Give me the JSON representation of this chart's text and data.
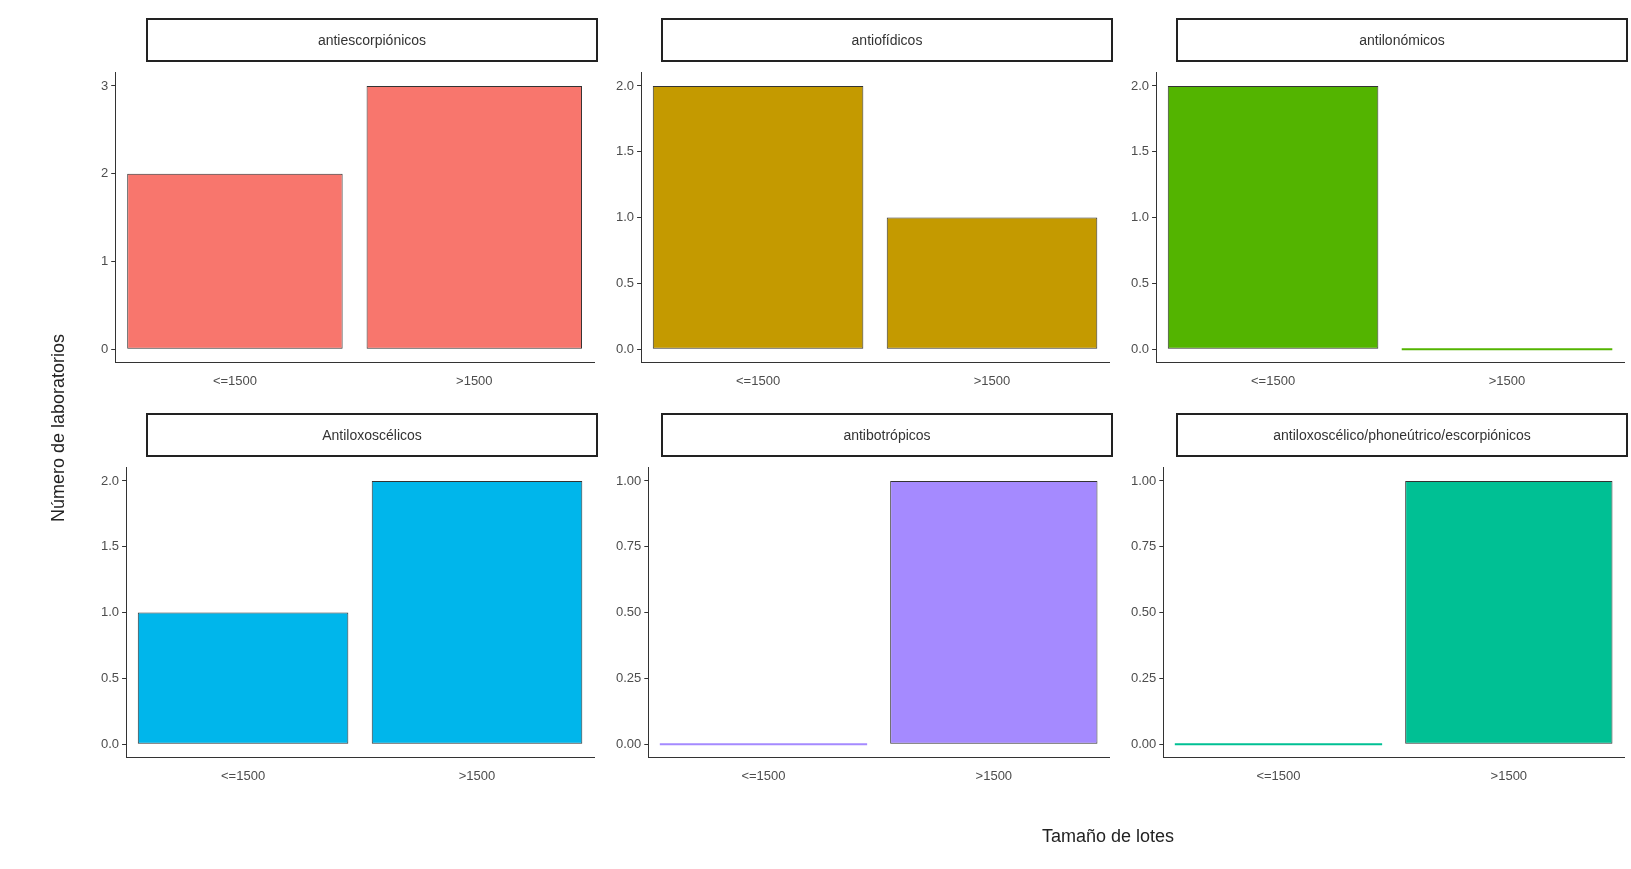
{
  "chart_data": [
    {
      "type": "bar",
      "title": "antiescorpiónicos",
      "ylabel": "Número de laboratorios",
      "categories": [
        "<=1500",
        ">1500"
      ],
      "values": [
        2,
        3
      ],
      "color": "#F8766D",
      "ylim": [
        -0.15,
        3.15
      ],
      "yticks": [
        0,
        1,
        2,
        3
      ],
      "grid": false,
      "legend": false
    },
    {
      "type": "bar",
      "title": "antiofídicos",
      "categories": [
        "<=1500",
        ">1500"
      ],
      "values": [
        2,
        1
      ],
      "color": "#C49A00",
      "ylim": [
        -0.1,
        2.1
      ],
      "yticks": [
        {
          "value": 0,
          "label": "0.0"
        },
        0.5,
        {
          "value": 1,
          "label": "1.0"
        },
        1.5,
        {
          "value": 2,
          "label": "2.0"
        }
      ],
      "grid": false,
      "legend": false
    },
    {
      "type": "bar",
      "title": "antilonómicos",
      "categories": [
        "<=1500",
        ">1500"
      ],
      "values": [
        2,
        0
      ],
      "color": "#53B400",
      "ylim": [
        -0.1,
        2.1
      ],
      "yticks": [
        {
          "value": 0,
          "label": "0.0"
        },
        0.5,
        {
          "value": 1,
          "label": "1.0"
        },
        1.5,
        {
          "value": 2,
          "label": "2.0"
        }
      ],
      "grid": false,
      "legend": false
    },
    {
      "type": "bar",
      "title": "Antiloxoscélicos",
      "categories": [
        "<=1500",
        ">1500"
      ],
      "values": [
        1,
        2
      ],
      "color": "#00B6EB",
      "ylim": [
        -0.1,
        2.1
      ],
      "yticks": [
        {
          "value": 0,
          "label": "0.0"
        },
        0.5,
        {
          "value": 1,
          "label": "1.0"
        },
        1.5,
        {
          "value": 2,
          "label": "2.0"
        }
      ],
      "grid": false,
      "legend": false
    },
    {
      "type": "bar",
      "title": "antibotrópicos",
      "xlabel": "Tamaño de lotes",
      "categories": [
        "<=1500",
        ">1500"
      ],
      "values": [
        0,
        1
      ],
      "color": "#A58AFF",
      "ylim": [
        -0.05,
        1.05
      ],
      "yticks": [
        {
          "value": 0,
          "label": "0.00"
        },
        0.25,
        {
          "value": 0.5,
          "label": "0.50"
        },
        0.75,
        {
          "value": 1,
          "label": "1.00"
        }
      ],
      "grid": false,
      "legend": false
    },
    {
      "type": "bar",
      "title": "antiloxoscélico/phoneútrico/escorpiónicos",
      "categories": [
        "<=1500",
        ">1500"
      ],
      "values": [
        0,
        1
      ],
      "color": "#00C094",
      "ylim": [
        -0.05,
        1.05
      ],
      "yticks": [
        {
          "value": 0,
          "label": "0.00"
        },
        0.25,
        {
          "value": 0.5,
          "label": "0.50"
        },
        0.75,
        {
          "value": 1,
          "label": "1.00"
        }
      ],
      "grid": false,
      "legend": false
    }
  ]
}
